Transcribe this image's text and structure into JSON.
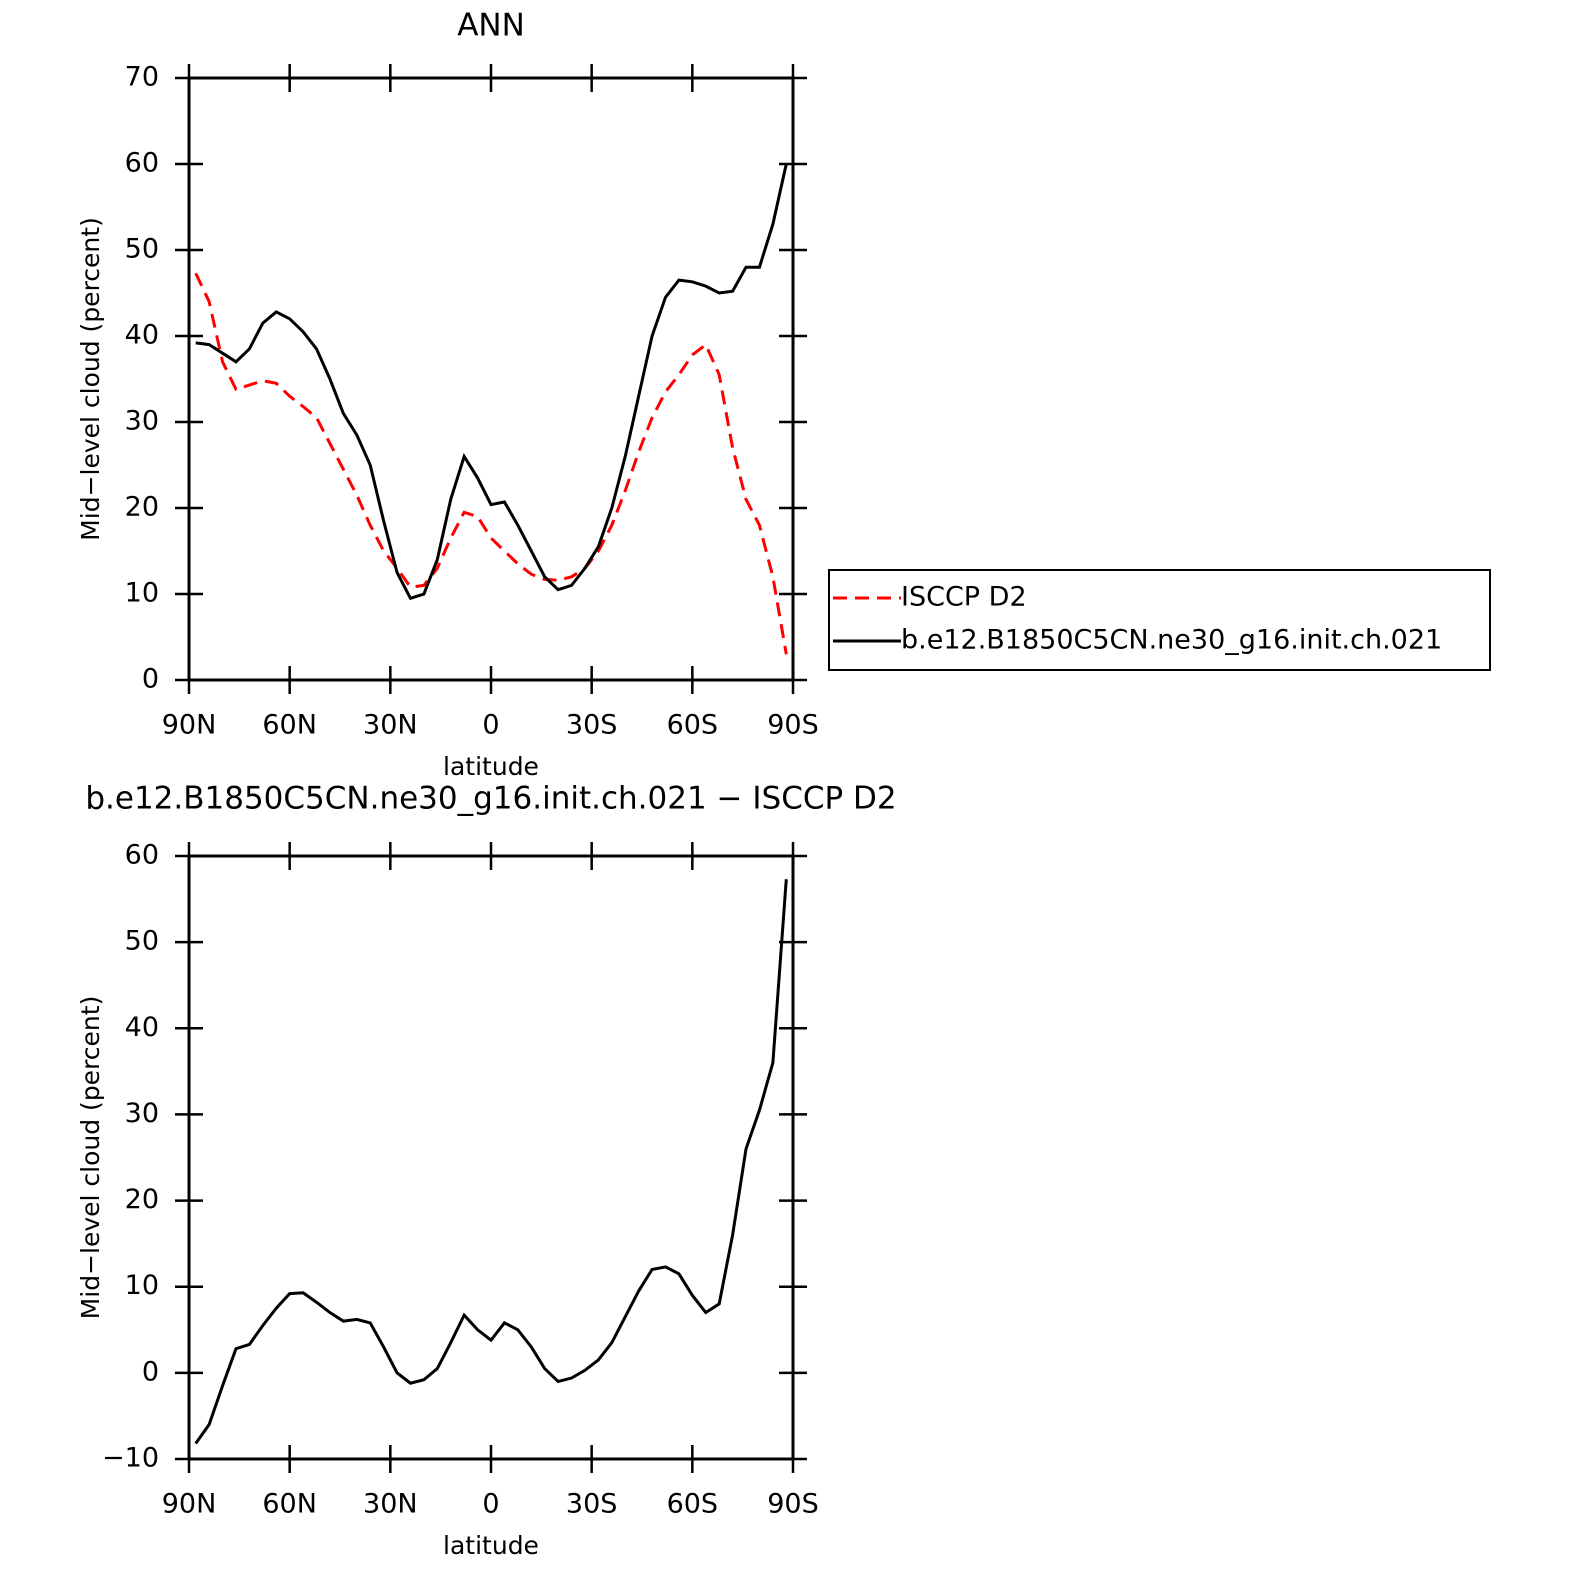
{
  "chart_data": [
    {
      "type": "line",
      "title": "ANN",
      "xlabel": "latitude",
      "ylabel": "Mid−level cloud (percent)",
      "xlim": [
        90,
        -90
      ],
      "ylim": [
        0,
        70
      ],
      "xticks": [
        {
          "value": 90,
          "label": "90N"
        },
        {
          "value": 60,
          "label": "60N"
        },
        {
          "value": 30,
          "label": "30N"
        },
        0,
        {
          "value": -30,
          "label": "30S"
        },
        {
          "value": -60,
          "label": "60S"
        },
        {
          "value": -90,
          "label": "90S"
        }
      ],
      "yticks": [
        0,
        10,
        20,
        30,
        40,
        50,
        60,
        70
      ],
      "legend": "right",
      "x": [
        88,
        84,
        80,
        76,
        72,
        68,
        64,
        60,
        56,
        52,
        48,
        44,
        40,
        36,
        32,
        28,
        24,
        20,
        16,
        12,
        8,
        4,
        0,
        -4,
        -8,
        -12,
        -16,
        -20,
        -24,
        -28,
        -32,
        -36,
        -40,
        -44,
        -48,
        -52,
        -56,
        -60,
        -64,
        -68,
        -72,
        -76,
        -80,
        -84,
        -88
      ],
      "series": [
        {
          "name": "ISCCP D2",
          "color": "#ff0000",
          "dash": true,
          "values": [
            47.3,
            44,
            37,
            33.8,
            34.3,
            34.8,
            34.5,
            33,
            31.8,
            30.5,
            27.5,
            24.5,
            21.5,
            18,
            15,
            13,
            10.8,
            11,
            13,
            16.5,
            19.5,
            19,
            16.5,
            15,
            13.5,
            12.3,
            11.7,
            11.6,
            12,
            13,
            15,
            18,
            22,
            26.5,
            30.5,
            33.5,
            35.5,
            37.8,
            39,
            35.5,
            27,
            21,
            18,
            12,
            3
          ]
        },
        {
          "name": "b.e12.B1850C5CN.ne30_g16.init.ch.021",
          "color": "#000000",
          "dash": false,
          "values": [
            39.2,
            39,
            38,
            37,
            38.5,
            41.5,
            42.8,
            42,
            40.5,
            38.5,
            35,
            31,
            28.5,
            25,
            18.5,
            12.5,
            9.5,
            10,
            14,
            21,
            26,
            23.5,
            20.4,
            20.7,
            18,
            15,
            12,
            10.5,
            11,
            13,
            15.5,
            20,
            26,
            33,
            40,
            44.5,
            46.5,
            46.3,
            45.8,
            45,
            45.2,
            48,
            48,
            53,
            60
          ]
        }
      ]
    },
    {
      "type": "line",
      "title": "b.e12.B1850C5CN.ne30_g16.init.ch.021 − ISCCP D2",
      "xlabel": "latitude",
      "ylabel": "Mid−level cloud (percent)",
      "xlim": [
        90,
        -90
      ],
      "ylim": [
        -10,
        60
      ],
      "xticks": [
        {
          "value": 90,
          "label": "90N"
        },
        {
          "value": 60,
          "label": "60N"
        },
        {
          "value": 30,
          "label": "30N"
        },
        0,
        {
          "value": -30,
          "label": "30S"
        },
        {
          "value": -60,
          "label": "60S"
        },
        {
          "value": -90,
          "label": "90S"
        }
      ],
      "yticks": [
        {
          "value": -10,
          "label": "−10"
        },
        0,
        10,
        20,
        30,
        40,
        50,
        60
      ],
      "x": [
        88,
        84,
        80,
        76,
        72,
        68,
        64,
        60,
        56,
        52,
        48,
        44,
        40,
        36,
        32,
        28,
        24,
        20,
        16,
        12,
        8,
        4,
        0,
        -4,
        -8,
        -12,
        -16,
        -20,
        -24,
        -28,
        -32,
        -36,
        -40,
        -44,
        -48,
        -52,
        -56,
        -60,
        -64,
        -68,
        -72,
        -76,
        -80,
        -84,
        -88
      ],
      "color": "#000000",
      "values": [
        -8.2,
        -6,
        -1.5,
        2.8,
        3.3,
        5.5,
        7.5,
        9.2,
        9.3,
        8.2,
        7,
        6,
        6.2,
        5.8,
        3,
        0,
        -1.2,
        -0.8,
        0.5,
        3.5,
        6.7,
        5,
        3.8,
        5.8,
        5,
        3,
        0.5,
        -1,
        -0.6,
        0.3,
        1.5,
        3.5,
        6.5,
        9.5,
        12,
        12.3,
        11.5,
        9,
        7,
        8,
        16,
        26,
        30.5,
        36,
        57.3
      ]
    }
  ]
}
